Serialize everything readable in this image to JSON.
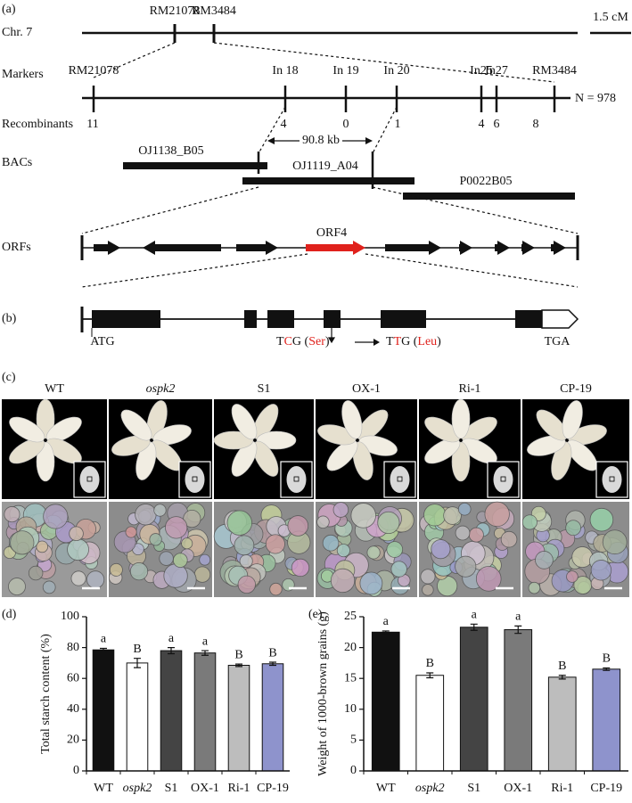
{
  "panels": {
    "a": "(a)",
    "b": "(b)",
    "c": "(c)",
    "d": "(d)",
    "e": "(e)"
  },
  "map": {
    "chromosome": {
      "label": "Chr. 7",
      "markers": [
        "RM21078",
        "RM3484"
      ],
      "scale": "1.5 cM"
    },
    "markers": {
      "label": "Markers",
      "names": [
        "RM21078",
        "In 18",
        "In 19",
        "In 20",
        "In25",
        "In27",
        "RM3484"
      ],
      "n": "N = 978"
    },
    "recombinants": {
      "label": "Recombinants",
      "counts": [
        11,
        4,
        0,
        1,
        4,
        6,
        8
      ]
    },
    "interval": "90.8 kb",
    "bacs": {
      "label": "BACs",
      "names": [
        "OJ1138_B05",
        "OJ1119_A04",
        "P0022B05"
      ]
    },
    "orfs": {
      "label": "ORFs",
      "highlight": "ORF4"
    }
  },
  "gene": {
    "start": "ATG",
    "stop": "TGA",
    "mutation_from": [
      {
        "text": "T",
        "color": "#111111"
      },
      {
        "text": "C",
        "color": "#e0211c"
      },
      {
        "text": "G (",
        "color": "#111111"
      },
      {
        "text": "Ser",
        "color": "#e0211c"
      },
      {
        "text": ")",
        "color": "#111111"
      }
    ],
    "mutation_to": [
      {
        "text": "T",
        "color": "#111111"
      },
      {
        "text": "T",
        "color": "#e0211c"
      },
      {
        "text": "G (",
        "color": "#111111"
      },
      {
        "text": "Leu",
        "color": "#e0211c"
      },
      {
        "text": ")",
        "color": "#111111"
      }
    ]
  },
  "lines": {
    "names": [
      "WT",
      "ospk2",
      "S1",
      "OX-1",
      "Ri-1",
      "CP-19"
    ],
    "italic": [
      false,
      true,
      false,
      false,
      false,
      false
    ]
  },
  "chart_data": [
    {
      "type": "bar",
      "y_label": "Total starch content (%)",
      "categories": [
        "WT",
        "ospk2",
        "S1",
        "OX-1",
        "Ri-1",
        "CP-19"
      ],
      "italic": [
        false,
        true,
        false,
        false,
        false,
        false
      ],
      "values": [
        78.5,
        70,
        78,
        76.5,
        68.5,
        69.5
      ],
      "errors": [
        1,
        3,
        2,
        1.5,
        0.8,
        1
      ],
      "letters": [
        "a",
        "B",
        "a",
        "a",
        "B",
        "B"
      ],
      "colors": [
        "#111111",
        "#ffffff",
        "#444444",
        "#7a7a7a",
        "#bdbdbd",
        "#8e93cc"
      ],
      "ylim": [
        0,
        100
      ],
      "yticks": [
        0,
        20,
        40,
        60,
        80,
        100
      ]
    },
    {
      "type": "bar",
      "y_label": "Weight of 1000-brown grains (g)",
      "categories": [
        "WT",
        "ospk2",
        "S1",
        "OX-1",
        "Ri-1",
        "CP-19"
      ],
      "italic": [
        false,
        true,
        false,
        false,
        false,
        false
      ],
      "values": [
        22.5,
        15.5,
        23.3,
        22.9,
        15.2,
        16.5
      ],
      "errors": [
        0.2,
        0.4,
        0.5,
        0.6,
        0.3,
        0.2
      ],
      "letters": [
        "a",
        "B",
        "a",
        "a",
        "B",
        "B"
      ],
      "colors": [
        "#111111",
        "#ffffff",
        "#444444",
        "#7a7a7a",
        "#bdbdbd",
        "#8e93cc"
      ],
      "ylim": [
        0,
        25
      ],
      "yticks": [
        0,
        5,
        10,
        15,
        20,
        25
      ]
    }
  ]
}
